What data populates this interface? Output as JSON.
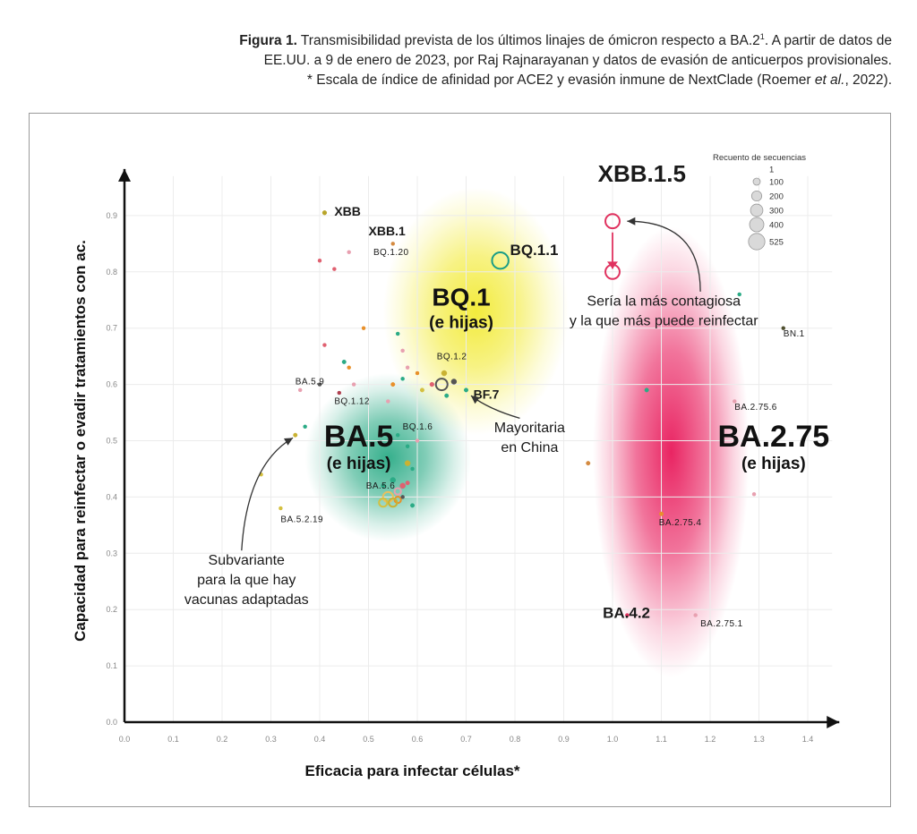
{
  "caption": {
    "figure_label": "Figura 1.",
    "line1_rest": " Transmisibilidad prevista de los últimos linajes de ómicron respecto a BA.2",
    "line1_sup": "1",
    "line1_end": ". A partir de datos de",
    "line2": "EE.UU. a 9 de enero de 2023, por Raj Rajnarayanan y datos de evasión de anticuerpos provisionales.",
    "line3_a": "* Escala de índice de afinidad por ACE2 y evasión inmune de NextClade (Roemer ",
    "line3_italic": "et al.",
    "line3_b": ", 2022)."
  },
  "chart_data": {
    "type": "scatter",
    "xlabel": "Eficacia para infectar células*",
    "ylabel": "Capacidad para reinfectar o evadir tratamientos con ac.",
    "xlim": [
      0,
      1.45
    ],
    "ylim": [
      0,
      0.97
    ],
    "x_ticks": [
      "0.0",
      "0.1",
      "0.2",
      "0.3",
      "0.4",
      "0.5",
      "0.6",
      "0.7",
      "0.8",
      "0.9",
      "1.0",
      "1.1",
      "1.2",
      "1.3",
      "1.4"
    ],
    "y_ticks": [
      "0.0",
      "0.1",
      "0.2",
      "0.3",
      "0.4",
      "0.5",
      "0.6",
      "0.7",
      "0.8",
      "0.9"
    ],
    "grid": true,
    "legend": {
      "title": "Recuento de secuencias",
      "placement": "top-right",
      "entries": [
        {
          "label": "1",
          "size": 1
        },
        {
          "label": "100",
          "size": 100
        },
        {
          "label": "200",
          "size": 200
        },
        {
          "label": "300",
          "size": 300
        },
        {
          "label": "400",
          "size": 400
        },
        {
          "label": "525",
          "size": 525
        }
      ]
    },
    "clusters": [
      {
        "x": 0.54,
        "y": 0.47,
        "rx": 0.17,
        "ry": 0.15,
        "color": "#2bab86"
      },
      {
        "x": 0.72,
        "y": 0.73,
        "rx": 0.19,
        "ry": 0.22,
        "color": "#f2ea32"
      },
      {
        "x": 1.12,
        "y": 0.48,
        "rx": 0.16,
        "ry": 0.4,
        "color": "#e8195a"
      }
    ],
    "group_labels": [
      {
        "name": "BQ.1",
        "sub": "(e hijas)",
        "x": 0.69,
        "y": 0.74,
        "size": 28,
        "subsize": 19
      },
      {
        "name": "BA.5",
        "sub": "(e hijas)",
        "x": 0.48,
        "y": 0.49,
        "size": 34,
        "subsize": 19
      },
      {
        "name": "BA.2.75",
        "sub": "(e hijas)",
        "x": 1.33,
        "y": 0.49,
        "size": 34,
        "subsize": 19
      }
    ],
    "points": [
      {
        "x": 1.0,
        "y": 0.89,
        "size": 300,
        "color": "#e0325f",
        "label": "XBB.1.5",
        "lx": 0.97,
        "ly": 0.96,
        "lsize": 26,
        "bold": true
      },
      {
        "x": 1.0,
        "y": 0.8,
        "size": 300,
        "color": "#e0325f"
      },
      {
        "x": 0.77,
        "y": 0.82,
        "size": 400,
        "color": "#1a9d86",
        "label": "BQ.1.1",
        "lx": 0.79,
        "ly": 0.83,
        "lsize": 17,
        "bold": true
      },
      {
        "x": 0.65,
        "y": 0.6,
        "size": 200,
        "color": "#555555"
      },
      {
        "x": 0.41,
        "y": 0.905,
        "size": 10,
        "color": "#b8a52a",
        "label": "XBB",
        "lx": 0.43,
        "ly": 0.9,
        "lsize": 14,
        "bold": true
      },
      {
        "x": 0.55,
        "y": 0.85,
        "size": 5,
        "color": "#d48a40",
        "label": "XBB.1",
        "lx": 0.5,
        "ly": 0.865,
        "lsize": 14,
        "bold": true
      },
      {
        "x": 0.46,
        "y": 0.835,
        "size": 5,
        "color": "#e8a0b0",
        "label": "BQ.1.20",
        "lx": 0.51,
        "ly": 0.83,
        "lsize": 10,
        "bold": false
      },
      {
        "x": 0.4,
        "y": 0.82,
        "size": 5,
        "color": "#e06070"
      },
      {
        "x": 0.43,
        "y": 0.805,
        "size": 5,
        "color": "#e06070"
      },
      {
        "x": 0.7,
        "y": 0.59,
        "size": 8,
        "color": "#2bab86",
        "label": "BF.7",
        "lx": 0.715,
        "ly": 0.575,
        "lsize": 14,
        "bold": true
      },
      {
        "x": 0.655,
        "y": 0.62,
        "size": 20,
        "color": "#c9b232",
        "label": "BQ.1.2",
        "lx": 0.64,
        "ly": 0.645,
        "lsize": 10,
        "bold": false
      },
      {
        "x": 0.4,
        "y": 0.6,
        "size": 5,
        "color": "#555555",
        "label": "BA.5.9",
        "lx": 0.35,
        "ly": 0.6,
        "lsize": 10,
        "bold": false
      },
      {
        "x": 0.44,
        "y": 0.585,
        "size": 5,
        "color": "#b04050",
        "label": "BQ.1.12",
        "lx": 0.43,
        "ly": 0.565,
        "lsize": 10,
        "bold": false
      },
      {
        "x": 0.56,
        "y": 0.51,
        "size": 5,
        "color": "#2bab86",
        "label": "BQ.1.6",
        "lx": 0.57,
        "ly": 0.52,
        "lsize": 10,
        "bold": false
      },
      {
        "x": 0.53,
        "y": 0.42,
        "size": 8,
        "color": "#2bab86",
        "label": "BA.5.6",
        "lx": 0.495,
        "ly": 0.415,
        "lsize": 10,
        "bold": false
      },
      {
        "x": 0.32,
        "y": 0.38,
        "size": 5,
        "color": "#d4c040",
        "label": "BA.5.2.19",
        "lx": 0.32,
        "ly": 0.355,
        "lsize": 10,
        "bold": false
      },
      {
        "x": 1.35,
        "y": 0.7,
        "size": 5,
        "color": "#505030",
        "label": "BN.1",
        "lx": 1.35,
        "ly": 0.685,
        "lsize": 10,
        "bold": false
      },
      {
        "x": 1.25,
        "y": 0.57,
        "size": 5,
        "color": "#e8a0b0",
        "label": "BA.2.75.6",
        "lx": 1.25,
        "ly": 0.555,
        "lsize": 10,
        "bold": false
      },
      {
        "x": 1.1,
        "y": 0.37,
        "size": 8,
        "color": "#e8902a",
        "label": "BA.2.75.4",
        "lx": 1.095,
        "ly": 0.35,
        "lsize": 10,
        "bold": false
      },
      {
        "x": 1.03,
        "y": 0.19,
        "size": 5,
        "color": "#e0325f",
        "label": "BA.4.2",
        "lx": 0.98,
        "ly": 0.185,
        "lsize": 17,
        "bold": true
      },
      {
        "x": 1.17,
        "y": 0.19,
        "size": 5,
        "color": "#e8a0b0",
        "label": "BA.2.75.1",
        "lx": 1.18,
        "ly": 0.17,
        "lsize": 10,
        "bold": false
      },
      {
        "x": 0.95,
        "y": 0.46,
        "size": 8,
        "color": "#d48a40"
      },
      {
        "x": 1.07,
        "y": 0.59,
        "size": 8,
        "color": "#2bab86"
      },
      {
        "x": 1.26,
        "y": 0.76,
        "size": 5,
        "color": "#2bab86"
      },
      {
        "x": 1.29,
        "y": 0.405,
        "size": 5,
        "color": "#e8a0b0"
      },
      {
        "x": 0.36,
        "y": 0.59,
        "size": 5,
        "color": "#e8a0b0"
      },
      {
        "x": 0.37,
        "y": 0.525,
        "size": 5,
        "color": "#2bab86"
      },
      {
        "x": 0.35,
        "y": 0.51,
        "size": 8,
        "color": "#c9b232"
      },
      {
        "x": 0.28,
        "y": 0.44,
        "size": 5,
        "color": "#d4c040"
      },
      {
        "x": 0.41,
        "y": 0.67,
        "size": 5,
        "color": "#e06070"
      },
      {
        "x": 0.45,
        "y": 0.64,
        "size": 8,
        "color": "#2bab86"
      },
      {
        "x": 0.49,
        "y": 0.7,
        "size": 5,
        "color": "#e8902a"
      },
      {
        "x": 0.56,
        "y": 0.69,
        "size": 5,
        "color": "#2bab86"
      },
      {
        "x": 0.46,
        "y": 0.63,
        "size": 5,
        "color": "#e8902a"
      },
      {
        "x": 0.57,
        "y": 0.66,
        "size": 5,
        "color": "#e8a0b0"
      },
      {
        "x": 0.58,
        "y": 0.63,
        "size": 5,
        "color": "#e8a0b0"
      },
      {
        "x": 0.47,
        "y": 0.6,
        "size": 5,
        "color": "#e8a0b0"
      },
      {
        "x": 0.55,
        "y": 0.6,
        "size": 8,
        "color": "#e8902a"
      },
      {
        "x": 0.57,
        "y": 0.61,
        "size": 5,
        "color": "#2bab86"
      },
      {
        "x": 0.61,
        "y": 0.59,
        "size": 8,
        "color": "#d4c040"
      },
      {
        "x": 0.63,
        "y": 0.6,
        "size": 10,
        "color": "#e06070"
      },
      {
        "x": 0.66,
        "y": 0.58,
        "size": 8,
        "color": "#2bab86"
      },
      {
        "x": 0.675,
        "y": 0.605,
        "size": 20,
        "color": "#555555"
      },
      {
        "x": 0.54,
        "y": 0.57,
        "size": 5,
        "color": "#e8a0b0"
      },
      {
        "x": 0.6,
        "y": 0.62,
        "size": 5,
        "color": "#e8902a"
      },
      {
        "x": 0.58,
        "y": 0.46,
        "size": 20,
        "color": "#c9b232"
      },
      {
        "x": 0.55,
        "y": 0.43,
        "size": 20,
        "color": "#2bab86"
      },
      {
        "x": 0.57,
        "y": 0.42,
        "size": 20,
        "color": "#e06070"
      },
      {
        "x": 0.56,
        "y": 0.41,
        "size": 60,
        "color": "#e8a0b0"
      },
      {
        "x": 0.54,
        "y": 0.4,
        "size": 150,
        "color": "#e8c060"
      },
      {
        "x": 0.53,
        "y": 0.39,
        "size": 100,
        "color": "#d4c040"
      },
      {
        "x": 0.56,
        "y": 0.395,
        "size": 60,
        "color": "#e8902a"
      },
      {
        "x": 0.55,
        "y": 0.39,
        "size": 100,
        "color": "#c9b232"
      },
      {
        "x": 0.59,
        "y": 0.385,
        "size": 8,
        "color": "#2bab86"
      },
      {
        "x": 0.57,
        "y": 0.4,
        "size": 5,
        "color": "#555555"
      },
      {
        "x": 0.58,
        "y": 0.49,
        "size": 5,
        "color": "#2bab86"
      },
      {
        "x": 0.6,
        "y": 0.5,
        "size": 5,
        "color": "#e8a0b0"
      },
      {
        "x": 0.59,
        "y": 0.45,
        "size": 5,
        "color": "#2bab86"
      },
      {
        "x": 0.58,
        "y": 0.425,
        "size": 8,
        "color": "#e06070"
      }
    ],
    "annotations": [
      {
        "lines": [
          "Sería la más contagiosa",
          "y la que más puede reinfectar"
        ],
        "x": 1.105,
        "y": 0.74,
        "size": 16,
        "arrow": {
          "from": [
            1.18,
            0.765
          ],
          "to": [
            1.03,
            0.89
          ]
        }
      },
      {
        "lines": [
          "Mayoritaria",
          "en China"
        ],
        "x": 0.83,
        "y": 0.515,
        "size": 16,
        "arrow": {
          "from": [
            0.81,
            0.54
          ],
          "to": [
            0.71,
            0.58
          ]
        }
      },
      {
        "lines": [
          "Subvariante",
          "para la que hay",
          "vacunas adaptadas"
        ],
        "x": 0.25,
        "y": 0.28,
        "size": 16,
        "arrow": {
          "from": [
            0.24,
            0.305
          ],
          "to": [
            0.345,
            0.505
          ]
        }
      }
    ],
    "trend_arrow": {
      "from": [
        1.0,
        0.87
      ],
      "to": [
        1.0,
        0.815
      ],
      "color": "#e0325f"
    }
  }
}
